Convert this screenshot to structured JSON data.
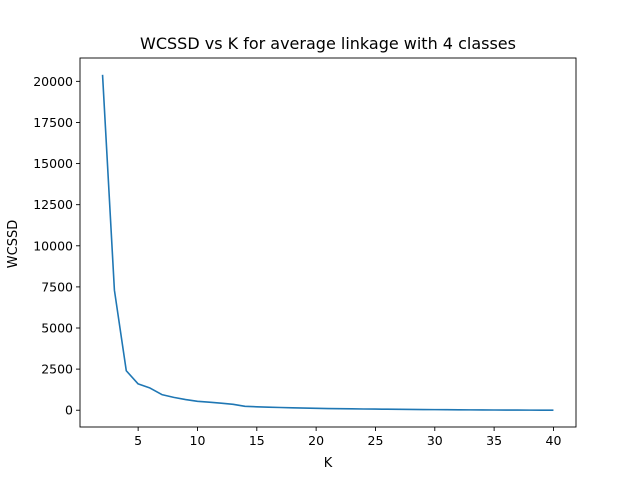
{
  "chart_data": {
    "type": "line",
    "title": "WCSSD vs K for average linkage with 4 classes",
    "xlabel": "K",
    "ylabel": "WCSSD",
    "xlim": [
      0.1,
      41.9
    ],
    "ylim": [
      -1020,
      21420
    ],
    "xticks": [
      5,
      10,
      15,
      20,
      25,
      30,
      35,
      40
    ],
    "yticks": [
      0,
      2500,
      5000,
      7500,
      10000,
      12500,
      15000,
      17500,
      20000
    ],
    "grid": false,
    "color": "#1f77b4",
    "series": [
      {
        "x": [
          2,
          3,
          4,
          5,
          6,
          7,
          8,
          9,
          10,
          11,
          12,
          13,
          14,
          15,
          16,
          17,
          18,
          19,
          20,
          21,
          22,
          23,
          24,
          25,
          26,
          27,
          28,
          29,
          30,
          31,
          32,
          33,
          34,
          35,
          36,
          37,
          38,
          39,
          40
        ],
        "values": [
          20400,
          7300,
          2400,
          1600,
          1350,
          950,
          780,
          650,
          540,
          490,
          430,
          360,
          240,
          210,
          185,
          165,
          145,
          130,
          115,
          102,
          92,
          83,
          75,
          68,
          61,
          55,
          49,
          43,
          37,
          32,
          27,
          22,
          18,
          14,
          11,
          8,
          6,
          4,
          3
        ]
      }
    ]
  }
}
